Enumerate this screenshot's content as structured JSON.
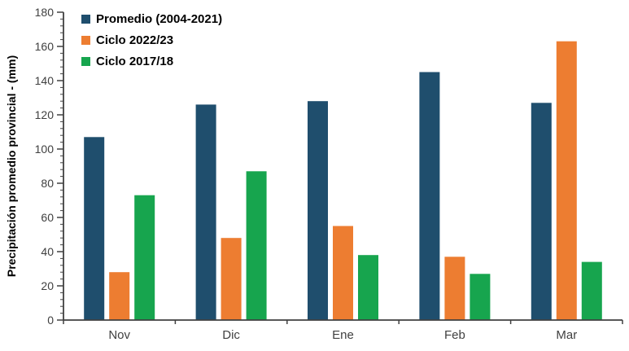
{
  "chart_data": {
    "type": "bar",
    "title": "",
    "xlabel": "",
    "ylabel": "Precipitación promedio provincial - (mm)",
    "ylim": [
      0,
      180
    ],
    "ytick_step": 20,
    "yminor_step": 4,
    "grid": false,
    "legend_position": "top-left-inside",
    "categories": [
      "Nov",
      "Dic",
      "Ene",
      "Feb",
      "Mar"
    ],
    "series": [
      {
        "name": "Promedio (2004-2021)",
        "color": "#1F4E6D",
        "values": [
          107,
          126,
          128,
          145,
          127
        ]
      },
      {
        "name": "Ciclo 2022/23",
        "color": "#ED7D31",
        "values": [
          28,
          48,
          55,
          37,
          163
        ]
      },
      {
        "name": "Ciclo 2017/18",
        "color": "#17A54E",
        "values": [
          73,
          87,
          38,
          27,
          34
        ]
      }
    ],
    "axis_color": "#404040",
    "tick_label_color": "#404040",
    "category_label_color": "#404040"
  }
}
